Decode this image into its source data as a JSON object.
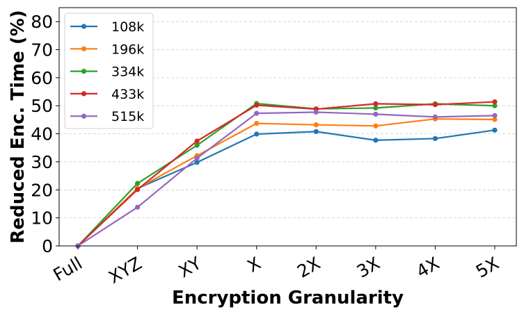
{
  "chart_data": {
    "type": "line",
    "xlabel": "Encryption Granularity",
    "ylabel": "Reduced Enc. Time (%)",
    "categories": [
      "Full",
      "XYZ",
      "XY",
      "X",
      "2X",
      "3X",
      "4X",
      "5X"
    ],
    "ylim": [
      0,
      85
    ],
    "yticks": [
      0,
      10,
      20,
      30,
      40,
      50,
      60,
      70,
      80
    ],
    "grid": "horizontal-dashed",
    "legend_position": "top-left",
    "series": [
      {
        "name": "108k",
        "color": "#1f77b4",
        "values": [
          0,
          20.5,
          29.8,
          39.9,
          40.8,
          37.7,
          38.3,
          41.3
        ]
      },
      {
        "name": "196k",
        "color": "#ff7f0e",
        "values": [
          0,
          20.5,
          32.2,
          43.7,
          43.2,
          42.8,
          45.3,
          45.1
        ]
      },
      {
        "name": "334k",
        "color": "#2ca02c",
        "values": [
          0,
          22.3,
          35.9,
          50.8,
          48.9,
          49.2,
          50.7,
          50.0
        ]
      },
      {
        "name": "433k",
        "color": "#d62728",
        "values": [
          0,
          20.1,
          37.4,
          50.2,
          48.8,
          50.7,
          50.4,
          51.4
        ]
      },
      {
        "name": "515k",
        "color": "#9467bd",
        "values": [
          0,
          13.8,
          31.3,
          47.3,
          47.7,
          47.0,
          46.0,
          46.5
        ]
      }
    ]
  }
}
